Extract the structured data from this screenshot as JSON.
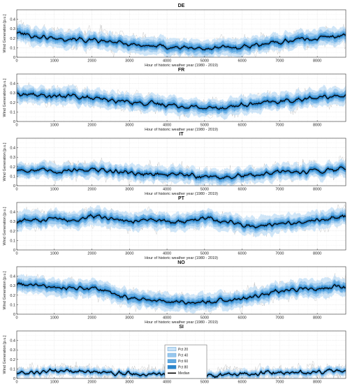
{
  "figure": {
    "colors": {
      "pct20": "#c8e2f7",
      "pct40": "#98c8ef",
      "pct60": "#5ea9e2",
      "pct80": "#2b86cc",
      "median": "#000000",
      "years": "#a7a7a7",
      "grid": "#dcdcdc"
    },
    "legend": {
      "entries": [
        "Pct 20",
        "Pct 40",
        "Pct 60",
        "Pct 80",
        "Median"
      ],
      "placement": "bottom-center"
    }
  },
  "chart_data": [
    {
      "type": "area",
      "title": "DE",
      "xlabel": "Hour of historic weather year (1980 - 2019)",
      "ylabel": "Wind Generation [p.u.]",
      "xlim": [
        0,
        8760
      ],
      "ylim": [
        0,
        0.5
      ],
      "xticks": [
        0,
        1000,
        2000,
        3000,
        4000,
        5000,
        6000,
        7000,
        8000
      ],
      "yticks": [
        0,
        0.1,
        0.2,
        0.3,
        0.4
      ],
      "grid": true,
      "x": [
        0,
        500,
        1000,
        1500,
        2000,
        2500,
        3000,
        3500,
        4000,
        4500,
        5000,
        5500,
        6000,
        6500,
        7000,
        7500,
        8000,
        8500,
        8760
      ],
      "series": [
        {
          "name": "Median",
          "values": [
            0.26,
            0.22,
            0.2,
            0.2,
            0.17,
            0.16,
            0.14,
            0.12,
            0.11,
            0.1,
            0.09,
            0.1,
            0.11,
            0.14,
            0.16,
            0.19,
            0.2,
            0.22,
            0.24
          ]
        }
      ],
      "spread": {
        "pct20": 0.02,
        "pct40": 0.04,
        "pct60": 0.06,
        "pct80": 0.09,
        "years": 0.17
      }
    },
    {
      "type": "area",
      "title": "FR",
      "xlabel": "Hour of historic weather year (1980 - 2019)",
      "ylabel": "Wind Generation [p.u.]",
      "xlim": [
        0,
        8760
      ],
      "ylim": [
        0,
        0.5
      ],
      "xticks": [
        0,
        1000,
        2000,
        3000,
        4000,
        5000,
        6000,
        7000,
        8000
      ],
      "yticks": [
        0,
        0.1,
        0.2,
        0.3,
        0.4
      ],
      "grid": true,
      "x": [
        0,
        500,
        1000,
        1500,
        2000,
        2500,
        3000,
        3500,
        4000,
        4500,
        5000,
        5500,
        6000,
        6500,
        7000,
        7500,
        8000,
        8500,
        8760
      ],
      "series": [
        {
          "name": "Median",
          "values": [
            0.29,
            0.28,
            0.26,
            0.27,
            0.24,
            0.22,
            0.21,
            0.19,
            0.18,
            0.16,
            0.14,
            0.15,
            0.17,
            0.19,
            0.21,
            0.23,
            0.25,
            0.27,
            0.28
          ]
        }
      ],
      "spread": {
        "pct20": 0.02,
        "pct40": 0.04,
        "pct60": 0.06,
        "pct80": 0.09,
        "years": 0.15
      }
    },
    {
      "type": "area",
      "title": "IT",
      "xlabel": "Hour of historic weather year (1980 - 2019)",
      "ylabel": "Wind Generation [p.u.]",
      "xlim": [
        0,
        8760
      ],
      "ylim": [
        0,
        0.5
      ],
      "xticks": [
        0,
        1000,
        2000,
        3000,
        4000,
        5000,
        6000,
        7000,
        8000
      ],
      "yticks": [
        0,
        0.1,
        0.2,
        0.3,
        0.4
      ],
      "grid": true,
      "x": [
        0,
        500,
        1000,
        1500,
        2000,
        2500,
        3000,
        3500,
        4000,
        4500,
        5000,
        5500,
        6000,
        6500,
        7000,
        7500,
        8000,
        8500,
        8760
      ],
      "series": [
        {
          "name": "Median",
          "values": [
            0.17,
            0.16,
            0.15,
            0.17,
            0.17,
            0.15,
            0.14,
            0.12,
            0.12,
            0.11,
            0.1,
            0.09,
            0.1,
            0.12,
            0.14,
            0.15,
            0.16,
            0.17,
            0.19
          ]
        }
      ],
      "spread": {
        "pct20": 0.02,
        "pct40": 0.035,
        "pct60": 0.055,
        "pct80": 0.08,
        "years": 0.14
      }
    },
    {
      "type": "area",
      "title": "PT",
      "xlabel": "Hour of historic weather year (1980 - 2019)",
      "ylabel": "Wind Generation [p.u.]",
      "xlim": [
        0,
        8760
      ],
      "ylim": [
        0,
        0.5
      ],
      "xticks": [
        0,
        1000,
        2000,
        3000,
        4000,
        5000,
        6000,
        7000,
        8000
      ],
      "yticks": [
        0,
        0.1,
        0.2,
        0.3,
        0.4
      ],
      "grid": true,
      "x": [
        0,
        500,
        1000,
        1500,
        2000,
        2500,
        3000,
        3500,
        4000,
        4500,
        5000,
        5500,
        6000,
        6500,
        7000,
        7500,
        8000,
        8500,
        8760
      ],
      "series": [
        {
          "name": "Median",
          "values": [
            0.3,
            0.31,
            0.33,
            0.31,
            0.36,
            0.33,
            0.31,
            0.32,
            0.31,
            0.3,
            0.33,
            0.31,
            0.26,
            0.25,
            0.27,
            0.3,
            0.31,
            0.34,
            0.36
          ]
        }
      ],
      "spread": {
        "pct20": 0.02,
        "pct40": 0.04,
        "pct60": 0.06,
        "pct80": 0.09,
        "years": 0.15
      }
    },
    {
      "type": "area",
      "title": "NO",
      "xlabel": "Hour of historic weather year (1980 - 2019)",
      "ylabel": "Wind Generation [p.u.]",
      "xlim": [
        0,
        8760
      ],
      "ylim": [
        0,
        0.5
      ],
      "xticks": [
        0,
        1000,
        2000,
        3000,
        4000,
        5000,
        6000,
        7000,
        8000
      ],
      "yticks": [
        0,
        0.1,
        0.2,
        0.3,
        0.4
      ],
      "grid": true,
      "x": [
        0,
        500,
        1000,
        1500,
        2000,
        2500,
        3000,
        3500,
        4000,
        4500,
        5000,
        5500,
        6000,
        6500,
        7000,
        7500,
        8000,
        8500,
        8760
      ],
      "series": [
        {
          "name": "Median",
          "values": [
            0.32,
            0.3,
            0.29,
            0.28,
            0.27,
            0.22,
            0.18,
            0.15,
            0.14,
            0.13,
            0.12,
            0.14,
            0.16,
            0.2,
            0.24,
            0.26,
            0.28,
            0.29,
            0.28
          ]
        }
      ],
      "spread": {
        "pct20": 0.02,
        "pct40": 0.04,
        "pct60": 0.06,
        "pct80": 0.09,
        "years": 0.15
      }
    },
    {
      "type": "area",
      "title": "SI",
      "xlabel": "Hour of historic weather year (1980 - 2019)",
      "ylabel": "Wind Generation [p.u.]",
      "xlim": [
        0,
        8760
      ],
      "ylim": [
        0,
        0.5
      ],
      "xticks": [
        0,
        1000,
        2000,
        3000,
        4000,
        5000,
        6000,
        7000,
        8000
      ],
      "yticks": [
        0,
        0.1,
        0.2,
        0.3,
        0.4
      ],
      "grid": true,
      "x": [
        0,
        500,
        1000,
        1500,
        2000,
        2500,
        3000,
        3500,
        4000,
        4500,
        5000,
        5500,
        6000,
        6500,
        7000,
        7500,
        8000,
        8500,
        8760
      ],
      "series": [
        {
          "name": "Median",
          "values": [
            0.07,
            0.07,
            0.08,
            0.07,
            0.07,
            0.06,
            0.05,
            0.05,
            0.04,
            0.04,
            0.03,
            0.03,
            0.04,
            0.05,
            0.06,
            0.06,
            0.07,
            0.07,
            0.07
          ]
        }
      ],
      "spread": {
        "pct20": 0.01,
        "pct40": 0.02,
        "pct60": 0.03,
        "pct80": 0.045,
        "years": 0.11
      }
    }
  ]
}
